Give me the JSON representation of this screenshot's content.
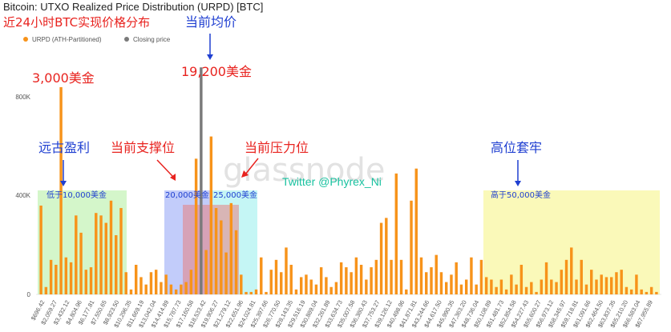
{
  "title": "Bitcoin: UTXO Realized Price Distribution (URPD) [BTC]",
  "subtitle_cn": "近24小时BTC实现价格分布",
  "watermark": "glassnode",
  "twitter": "Twitter @Phyrex_Ni",
  "colors": {
    "bar": "#f7931a",
    "closing": "#7a7a7a",
    "red": "#e8231f",
    "blue": "#1f3fd1",
    "green": "#19c2a0"
  },
  "legend": [
    {
      "label": "URPD (ATH-Partitioned)",
      "color": "#f7931a"
    },
    {
      "label": "Closing price",
      "color": "#7a7a7a"
    }
  ],
  "annotations": {
    "peak3000": "3,000美金",
    "avg_label": "当前均价",
    "price19200": "19,200美金",
    "ancient_profit": "远古盈利",
    "support": "当前支撑位",
    "resistance": "当前压力位",
    "high_trap": "高位套牢",
    "below10000": "低于10,000美金",
    "range20000": "20,000美金",
    "range25000": "25,000美金",
    "above50000": "高于50,000美金"
  },
  "chart_data": {
    "type": "bar",
    "ylim": [
      0,
      950000
    ],
    "yticks": [
      "0",
      "400K",
      "800K"
    ],
    "ytick_values": [
      0,
      400000,
      800000
    ],
    "xtick_labels": [
      "$696.42",
      "$2,059.27",
      "$3,432.12",
      "$4,804.96",
      "$6,177.81",
      "$7,550.65",
      "$8,923.50",
      "$10,296.35",
      "$11,669.19",
      "$13,042.04",
      "$14,414.89",
      "$15,787.73",
      "$17,160.58",
      "$18,533.42",
      "$19,906.27",
      "$21,279.12",
      "$22,651.96",
      "$24,024.81",
      "$25,397.66",
      "$26,770.50",
      "$28,143.35",
      "$29,516.19",
      "$30,889.04",
      "$32,261.89",
      "$33,634.73",
      "$35,007.58",
      "$36,380.43",
      "$37,753.27",
      "$39,126.12",
      "$40,498.96",
      "$41,871.81",
      "$43,244.66",
      "$44,617.50",
      "$45,990.35",
      "$47,363.20",
      "$48,736.04",
      "$50,108.89",
      "$51,481.73",
      "$52,854.58",
      "$54,227.43",
      "$55,600.27",
      "$56,973.12",
      "$58,345.97",
      "$59,718.81",
      "$61,091.66",
      "$62,464.50",
      "$63,837.35",
      "$65,210.20",
      "$66,583.04",
      "$67,955.89"
    ],
    "values": [
      360000,
      30000,
      140000,
      120000,
      840000,
      150000,
      130000,
      320000,
      250000,
      100000,
      110000,
      330000,
      320000,
      290000,
      380000,
      240000,
      350000,
      90000,
      20000,
      120000,
      70000,
      40000,
      90000,
      100000,
      50000,
      80000,
      40000,
      20000,
      40000,
      50000,
      100000,
      550000,
      920000,
      180000,
      640000,
      350000,
      300000,
      170000,
      370000,
      260000,
      80000,
      10000,
      10000,
      20000,
      150000,
      10000,
      100000,
      140000,
      90000,
      190000,
      120000,
      20000,
      70000,
      80000,
      60000,
      40000,
      110000,
      70000,
      30000,
      50000,
      130000,
      110000,
      90000,
      150000,
      120000,
      60000,
      110000,
      140000,
      290000,
      310000,
      140000,
      490000,
      140000,
      20000,
      380000,
      510000,
      150000,
      90000,
      110000,
      160000,
      90000,
      50000,
      80000,
      130000,
      40000,
      60000,
      150000,
      40000,
      140000,
      70000,
      60000,
      30000,
      60000,
      20000,
      80000,
      40000,
      120000,
      30000,
      50000,
      10000,
      60000,
      130000,
      60000,
      50000,
      100000,
      140000,
      190000,
      60000,
      140000,
      40000,
      100000,
      60000,
      80000,
      70000,
      70000,
      90000,
      100000,
      30000,
      20000,
      80000,
      20000,
      10000,
      30000,
      10000
    ],
    "closing_price_index": 32,
    "closing_price_value": 920000
  }
}
